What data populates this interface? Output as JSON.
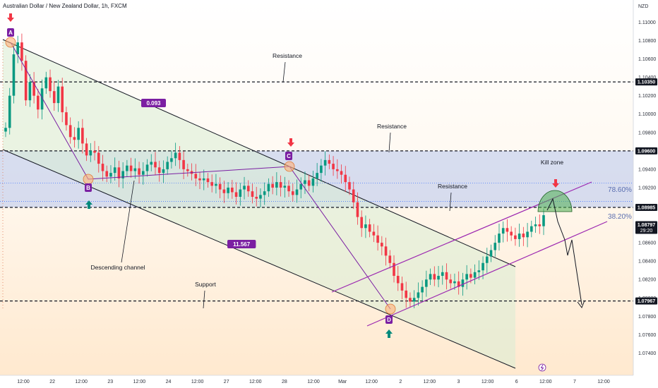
{
  "window": {
    "title": "Australian Dollar / New Zealand Dollar, 1h, FXCM",
    "currency": "NZD"
  },
  "chart_data": {
    "type": "candlestick",
    "title": "Australian Dollar / New Zealand Dollar, 1h, FXCM",
    "ylabel": "NZD",
    "ylim": [
      1.0725,
      1.1118
    ],
    "y_ticks": [
      1.11,
      1.108,
      1.106,
      1.104,
      1.102,
      1.1,
      1.098,
      1.096,
      1.094,
      1.092,
      1.09,
      1.088,
      1.086,
      1.084,
      1.082,
      1.08,
      1.078,
      1.076,
      1.074
    ],
    "x_ticks": [
      "12:00",
      "22",
      "12:00",
      "23",
      "12:00",
      "24",
      "12:00",
      "27",
      "12:00",
      "28",
      "12:00",
      "Mar",
      "12:00",
      "2",
      "12:00",
      "3",
      "12:00",
      "6",
      "12:00",
      "7",
      "12:00"
    ],
    "price_labels": [
      {
        "value": "1.10350",
        "style": "level"
      },
      {
        "value": "1.09600",
        "style": "level"
      },
      {
        "value": "1.08985",
        "style": "level"
      },
      {
        "value": "1.08797",
        "sub": "29:20",
        "style": "current"
      },
      {
        "value": "1.07967",
        "style": "level"
      }
    ],
    "horizontal_levels": [
      1.1035,
      1.096,
      1.08985,
      1.07967
    ],
    "dotted_levels": [
      1.0925,
      1.0905
    ],
    "zone": {
      "from": 1.096,
      "to": 1.08985
    },
    "annotations": {
      "resistance_1": "Resistance",
      "resistance_2": "Resistance",
      "resistance_3": "Resistance",
      "support": "Support",
      "channel": "Descending channel",
      "kill_zone": "Kill zone",
      "fib_786": "78.60%",
      "fib_382": "38.20%",
      "measure_1": "0.093",
      "measure_2": "11.567"
    },
    "points": {
      "A": {
        "label": "A",
        "price": 1.1077
      },
      "B": {
        "label": "B",
        "price": 1.0927
      },
      "C": {
        "label": "C",
        "price": 1.095
      },
      "D": {
        "label": "D",
        "price": 1.0794
      }
    },
    "candles_close": [
      1.0985,
      1.102,
      1.1065,
      1.1078,
      1.1058,
      1.1015,
      1.1035,
      1.102,
      1.1005,
      1.1028,
      1.104,
      1.1025,
      1.1012,
      1.103,
      1.1002,
      1.0988,
      1.0975,
      1.0972,
      1.0985,
      1.0968,
      1.0955,
      1.096,
      1.0958,
      1.0946,
      1.0938,
      1.0932,
      1.0936,
      1.0942,
      1.093,
      1.0938,
      1.0944,
      1.0938,
      1.0941,
      1.0934,
      1.0938,
      1.0945,
      1.0948,
      1.0942,
      1.0936,
      1.094,
      1.0948,
      1.0952,
      1.0958,
      1.095,
      1.094,
      1.0938,
      1.0935,
      1.093,
      1.0928,
      1.093,
      1.0926,
      1.0922,
      1.0924,
      1.0918,
      1.0914,
      1.092,
      1.0915,
      1.091,
      1.0918,
      1.0922,
      1.0916,
      1.091,
      1.0908,
      1.0912,
      1.0916,
      1.0924,
      1.092,
      1.0926,
      1.092,
      1.0922,
      1.0916,
      1.0912,
      1.0918,
      1.0924,
      1.0928,
      1.0922,
      1.093,
      1.0936,
      1.0944,
      1.095,
      1.0946,
      1.094,
      1.0938,
      1.0934,
      1.0926,
      1.0918,
      1.0904,
      1.0888,
      1.0876,
      1.088,
      1.0872,
      1.0868,
      1.086,
      1.0856,
      1.0846,
      1.0838,
      1.0824,
      1.0816,
      1.0808,
      1.08,
      1.0796,
      1.08,
      1.0806,
      1.0812,
      1.082,
      1.0826,
      1.082,
      1.0824,
      1.0828,
      1.082,
      1.0816,
      1.0818,
      1.0812,
      1.082,
      1.0826,
      1.0822,
      1.0828,
      1.083,
      1.0838,
      1.0845,
      1.0852,
      1.086,
      1.087,
      1.0876,
      1.0872,
      1.0868,
      1.0864,
      1.087,
      1.0866,
      1.0872,
      1.0878,
      1.088,
      1.0878,
      1.089
    ],
    "grid": false
  }
}
